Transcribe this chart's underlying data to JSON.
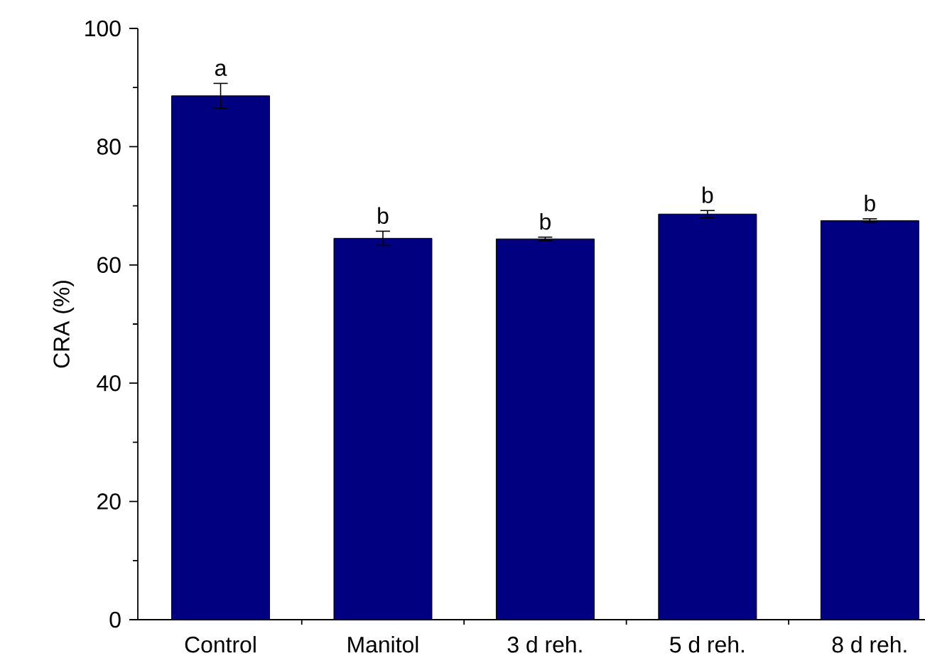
{
  "chart_data": {
    "type": "bar",
    "ylabel": "CRA (%)",
    "categories": [
      "Control",
      "Manitol",
      "3 d reh.",
      "5 d reh.",
      "8 d reh."
    ],
    "values": [
      88.6,
      64.5,
      64.4,
      68.6,
      67.5
    ],
    "errors": [
      2.1,
      1.2,
      0.3,
      0.6,
      0.3
    ],
    "color": "#000080",
    "ylim": [
      0,
      100
    ],
    "yticks": [
      0,
      20,
      40,
      60,
      80,
      100
    ],
    "grid": false,
    "annotations": [
      "a",
      "b",
      "b",
      "b",
      "b"
    ]
  }
}
